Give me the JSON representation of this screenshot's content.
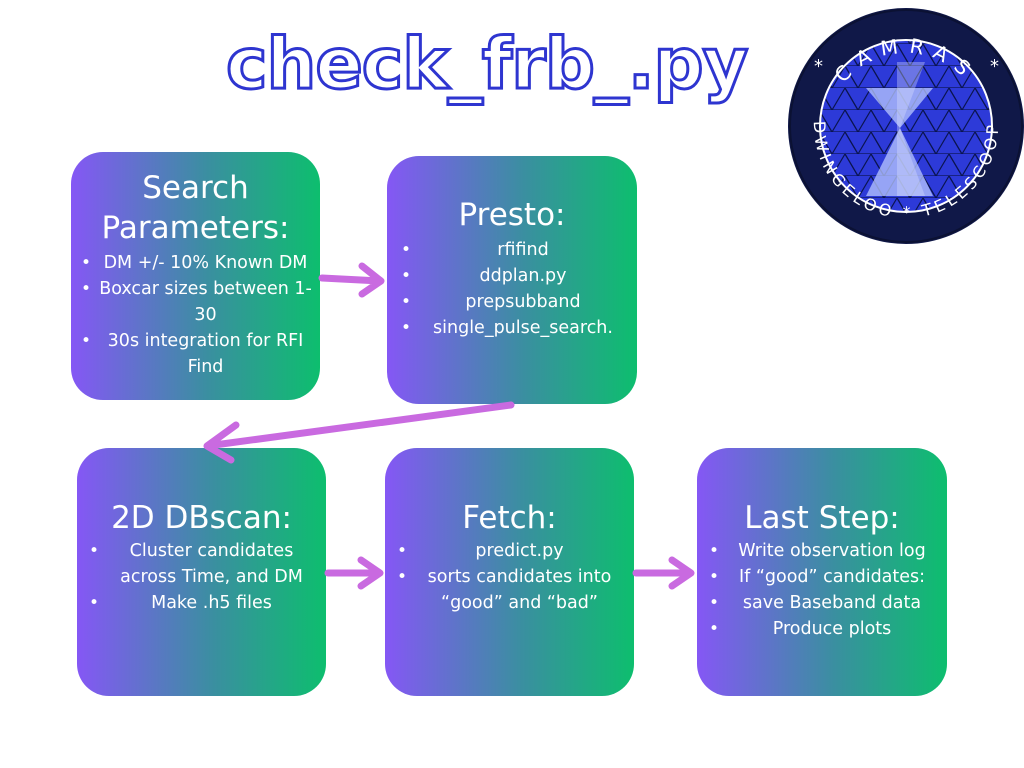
{
  "title": "check_frb_.py",
  "logo": {
    "top_text": "CAMRAS",
    "bottom_text": "DWINGELOO * TELESCOOP",
    "colors": {
      "ring": "#101848",
      "field": "#2d3ad8",
      "mark": "#b9c8ff"
    }
  },
  "arrow_color": "#c96ae0",
  "boxes": {
    "search": {
      "heading": "Search Parameters:",
      "items": [
        "DM +/- 10% Known DM",
        "Boxcar sizes between 1-30",
        "30s integration for RFI Find"
      ]
    },
    "presto": {
      "heading": "Presto:",
      "items": [
        "rfifind",
        "ddplan.py",
        "prepsubband",
        "single_pulse_search."
      ]
    },
    "dbscan": {
      "heading": "2D DBscan:",
      "items": [
        "Cluster candidates across Time, and DM",
        "Make .h5 files"
      ]
    },
    "fetch": {
      "heading": "Fetch:",
      "items": [
        "predict.py",
        "sorts candidates into “good” and “bad”"
      ]
    },
    "last": {
      "heading": "Last Step:",
      "items": [
        "Write observation log",
        "If “good” candidates:",
        "save Baseband data",
        "Produce plots"
      ]
    }
  }
}
